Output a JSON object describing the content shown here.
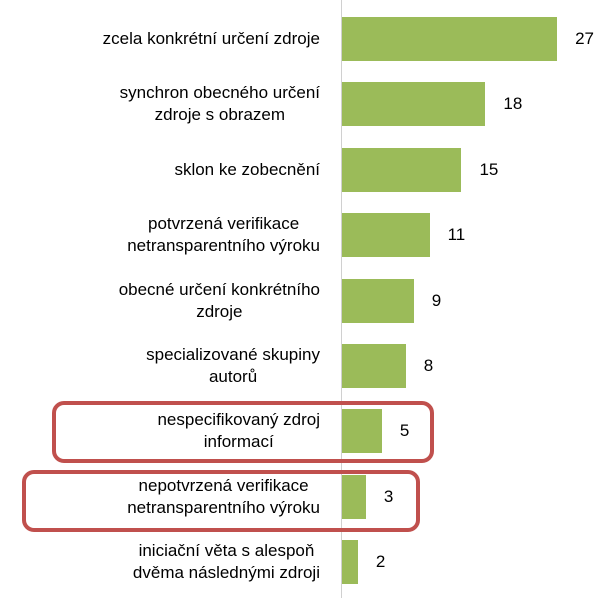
{
  "chart_data": {
    "type": "bar",
    "orientation": "horizontal",
    "categories": [
      "zcela konkrétní určení zdroje",
      "synchron obecného určení\nzdroje s obrazem",
      "sklon ke zobecnění",
      "potvrzená verifikace\nnetransparentního výroku",
      "obecné určení konkrétního\nzdroje",
      "specializované skupiny\nautorů",
      "nespecifikovaný zdroj\ninformací",
      "nepotvrzená verifikace\nnetransparentního výroku",
      "iniciační věta s alespoň\ndvěma následnými zdroji"
    ],
    "values": [
      27,
      18,
      15,
      11,
      9,
      8,
      5,
      3,
      2
    ],
    "color": "#9bbb59",
    "xlim": [
      0,
      29
    ]
  }
}
